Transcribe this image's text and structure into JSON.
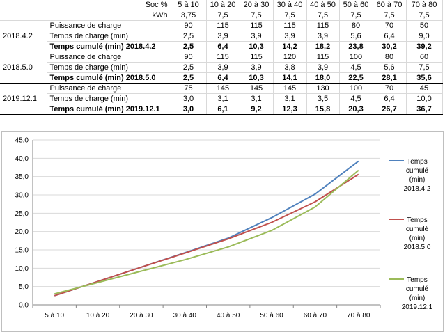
{
  "table": {
    "soc_label": "Soc %",
    "kwh_label": "kWh",
    "soc": [
      "5 à 10",
      "10 à 20",
      "20 à 30",
      "30 à 40",
      "40 à 50",
      "50 à 60",
      "60 à 70",
      "70 à 80"
    ],
    "kwh": [
      "3,75",
      "7,5",
      "7,5",
      "7,5",
      "7,5",
      "7,5",
      "7,5",
      "7,5"
    ],
    "groups": [
      {
        "version": "2018.4.2",
        "rows": [
          {
            "label": "Puissance de charge",
            "values": [
              "90",
              "115",
              "115",
              "115",
              "115",
              "80",
              "70",
              "50"
            ]
          },
          {
            "label": "Temps de charge (min)",
            "values": [
              "2,5",
              "3,9",
              "3,9",
              "3,9",
              "3,9",
              "5,6",
              "6,4",
              "9,0"
            ]
          },
          {
            "label": "Temps cumulé (min) 2018.4.2",
            "values": [
              "2,5",
              "6,4",
              "10,3",
              "14,2",
              "18,2",
              "23,8",
              "30,2",
              "39,2"
            ]
          }
        ]
      },
      {
        "version": "2018.5.0",
        "rows": [
          {
            "label": "Puissance de charge",
            "values": [
              "90",
              "115",
              "115",
              "120",
              "115",
              "100",
              "80",
              "60"
            ]
          },
          {
            "label": "Temps de charge (min)",
            "values": [
              "2,5",
              "3,9",
              "3,9",
              "3,8",
              "3,9",
              "4,5",
              "5,6",
              "7,5"
            ]
          },
          {
            "label": "Temps cumulé (min) 2018.5.0",
            "values": [
              "2,5",
              "6,4",
              "10,3",
              "14,1",
              "18,0",
              "22,5",
              "28,1",
              "35,6"
            ]
          }
        ]
      },
      {
        "version": "2019.12.1",
        "rows": [
          {
            "label": "Puissance de charge",
            "values": [
              "75",
              "145",
              "145",
              "145",
              "130",
              "100",
              "70",
              "45"
            ]
          },
          {
            "label": "Temps de charge (min)",
            "values": [
              "3,0",
              "3,1",
              "3,1",
              "3,1",
              "3,5",
              "4,5",
              "6,4",
              "10,0"
            ]
          },
          {
            "label": "Temps cumulé (min) 2019.12.1",
            "values": [
              "3,0",
              "6,1",
              "9,2",
              "12,3",
              "15,8",
              "20,3",
              "26,7",
              "36,7"
            ]
          }
        ]
      }
    ]
  },
  "chart_data": {
    "type": "line",
    "categories": [
      "5 à 10",
      "10 à 20",
      "20 à 30",
      "30 à 40",
      "40 à 50",
      "50 à 60",
      "60 à 70",
      "70 à 80"
    ],
    "ylim": [
      0,
      45
    ],
    "yticks": [
      "0,0",
      "5,0",
      "10,0",
      "15,0",
      "20,0",
      "25,0",
      "30,0",
      "35,0",
      "40,0",
      "45,0"
    ],
    "grid": true,
    "legend": "right",
    "series": [
      {
        "name": [
          "Temps",
          "cumulé",
          "(min)",
          "2018.4.2"
        ],
        "color": "#4f81bd",
        "values": [
          2.5,
          6.4,
          10.3,
          14.2,
          18.2,
          23.8,
          30.2,
          39.2
        ]
      },
      {
        "name": [
          "Temps",
          "cumulé",
          "(min)",
          "2018.5.0"
        ],
        "color": "#c0504d",
        "values": [
          2.5,
          6.4,
          10.3,
          14.1,
          18.0,
          22.5,
          28.1,
          35.6
        ]
      },
      {
        "name": [
          "Temps",
          "cumulé",
          "(min)",
          "2019.12.1"
        ],
        "color": "#9bbb59",
        "values": [
          3.0,
          6.1,
          9.2,
          12.3,
          15.8,
          20.3,
          26.7,
          36.7
        ]
      }
    ]
  }
}
